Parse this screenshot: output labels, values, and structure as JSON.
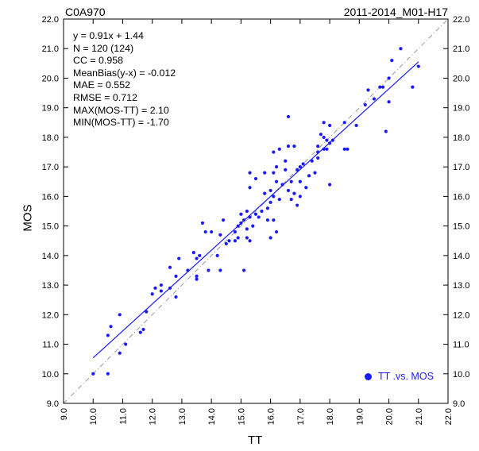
{
  "header": {
    "left_title": "C0A970",
    "right_title": "2011-2014_M01-H17"
  },
  "stats": [
    "y = 0.91x + 1.44",
    "N = 120 (124)",
    "CC =  0.958",
    "MeanBias(y-x) =  -0.012",
    "MAE  =  0.552",
    "RMSE =  0.712",
    "MAX(MOS-TT) =   2.10",
    "MIN(MOS-TT) =  -1.70"
  ],
  "chart_data": {
    "type": "scatter",
    "xlabel": "TT",
    "ylabel": "MOS",
    "xlim": [
      9.0,
      22.0
    ],
    "ylim": [
      9.0,
      22.0
    ],
    "xticks": [
      "9.0",
      "10.0",
      "11.0",
      "12.0",
      "13.0",
      "14.0",
      "15.0",
      "16.0",
      "17.0",
      "18.0",
      "19.0",
      "20.0",
      "21.0",
      "22.0"
    ],
    "yticks": [
      "9.0",
      "10.0",
      "11.0",
      "12.0",
      "13.0",
      "14.0",
      "15.0",
      "16.0",
      "17.0",
      "18.0",
      "19.0",
      "20.0",
      "21.0",
      "22.0"
    ],
    "legend": {
      "label": "TT .vs. MOS",
      "position": "bottom-right"
    },
    "colors": {
      "points": "#1a1aff",
      "fit_line": "#1a1aff",
      "diagonal": "#999999"
    },
    "fit": {
      "slope": 0.91,
      "intercept": 1.44
    },
    "diagonal": true,
    "points": [
      [
        10.0,
        10.0
      ],
      [
        10.5,
        10.0
      ],
      [
        10.5,
        11.3
      ],
      [
        10.6,
        11.6
      ],
      [
        10.9,
        12.0
      ],
      [
        10.9,
        10.7
      ],
      [
        11.1,
        11.0
      ],
      [
        11.6,
        11.4
      ],
      [
        11.7,
        11.5
      ],
      [
        11.8,
        12.1
      ],
      [
        12.0,
        12.7
      ],
      [
        12.1,
        12.9
      ],
      [
        12.3,
        12.8
      ],
      [
        12.3,
        13.0
      ],
      [
        12.6,
        12.9
      ],
      [
        12.6,
        13.6
      ],
      [
        12.8,
        13.3
      ],
      [
        12.8,
        12.6
      ],
      [
        12.9,
        13.9
      ],
      [
        13.2,
        13.5
      ],
      [
        13.4,
        14.1
      ],
      [
        13.5,
        13.3
      ],
      [
        13.5,
        13.2
      ],
      [
        13.5,
        13.9
      ],
      [
        13.6,
        14.0
      ],
      [
        13.7,
        15.1
      ],
      [
        13.8,
        14.8
      ],
      [
        13.9,
        13.5
      ],
      [
        14.0,
        14.8
      ],
      [
        14.2,
        14.0
      ],
      [
        14.3,
        14.7
      ],
      [
        14.3,
        13.5
      ],
      [
        14.4,
        15.2
      ],
      [
        14.5,
        14.4
      ],
      [
        14.6,
        14.5
      ],
      [
        14.8,
        14.5
      ],
      [
        14.8,
        14.8
      ],
      [
        14.9,
        14.6
      ],
      [
        14.9,
        15.0
      ],
      [
        15.0,
        15.1
      ],
      [
        15.0,
        15.4
      ],
      [
        15.1,
        13.5
      ],
      [
        15.1,
        15.2
      ],
      [
        15.2,
        14.6
      ],
      [
        15.2,
        14.9
      ],
      [
        15.2,
        15.5
      ],
      [
        15.3,
        14.5
      ],
      [
        15.3,
        15.3
      ],
      [
        15.3,
        16.3
      ],
      [
        15.3,
        16.8
      ],
      [
        15.4,
        15.0
      ],
      [
        15.5,
        15.4
      ],
      [
        15.5,
        16.6
      ],
      [
        15.6,
        15.3
      ],
      [
        15.7,
        15.5
      ],
      [
        15.8,
        16.1
      ],
      [
        15.8,
        16.8
      ],
      [
        15.9,
        15.2
      ],
      [
        15.9,
        15.6
      ],
      [
        16.0,
        14.6
      ],
      [
        16.0,
        15.8
      ],
      [
        16.0,
        16.2
      ],
      [
        16.1,
        15.2
      ],
      [
        16.1,
        16.0
      ],
      [
        16.1,
        16.8
      ],
      [
        16.1,
        17.5
      ],
      [
        16.2,
        14.8
      ],
      [
        16.2,
        16.5
      ],
      [
        16.2,
        17.0
      ],
      [
        16.3,
        15.9
      ],
      [
        16.3,
        17.6
      ],
      [
        16.4,
        16.4
      ],
      [
        16.5,
        16.9
      ],
      [
        16.5,
        17.2
      ],
      [
        16.6,
        16.2
      ],
      [
        16.6,
        17.7
      ],
      [
        16.6,
        18.7
      ],
      [
        16.7,
        15.9
      ],
      [
        16.7,
        16.5
      ],
      [
        16.8,
        16.1
      ],
      [
        16.8,
        17.7
      ],
      [
        16.9,
        15.7
      ],
      [
        16.9,
        16.9
      ],
      [
        17.0,
        16.0
      ],
      [
        17.0,
        16.5
      ],
      [
        17.0,
        17.0
      ],
      [
        17.1,
        17.1
      ],
      [
        17.2,
        16.3
      ],
      [
        17.3,
        16.7
      ],
      [
        17.4,
        17.2
      ],
      [
        17.5,
        16.8
      ],
      [
        17.6,
        17.5
      ],
      [
        17.6,
        17.7
      ],
      [
        17.6,
        17.3
      ],
      [
        17.7,
        18.1
      ],
      [
        17.8,
        17.6
      ],
      [
        17.8,
        18.0
      ],
      [
        17.8,
        18.5
      ],
      [
        17.9,
        17.9
      ],
      [
        17.9,
        17.6
      ],
      [
        18.0,
        16.4
      ],
      [
        18.0,
        17.8
      ],
      [
        18.0,
        18.4
      ],
      [
        18.1,
        17.9
      ],
      [
        18.5,
        17.6
      ],
      [
        18.5,
        18.5
      ],
      [
        18.6,
        17.6
      ],
      [
        18.9,
        18.4
      ],
      [
        19.2,
        19.1
      ],
      [
        19.3,
        19.6
      ],
      [
        19.5,
        19.3
      ],
      [
        19.7,
        19.7
      ],
      [
        19.8,
        19.7
      ],
      [
        19.9,
        18.2
      ],
      [
        20.0,
        19.2
      ],
      [
        20.0,
        20.0
      ],
      [
        20.1,
        20.6
      ],
      [
        20.4,
        21.0
      ],
      [
        20.8,
        19.7
      ],
      [
        21.0,
        20.4
      ]
    ]
  }
}
